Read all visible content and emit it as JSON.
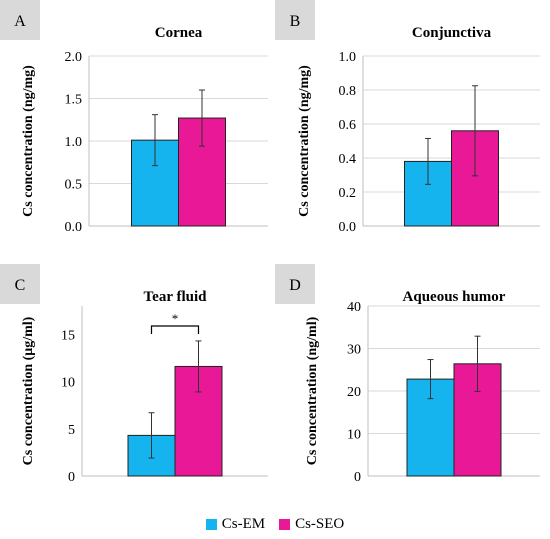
{
  "colors": {
    "cs_em": "#16b4ee",
    "cs_seo": "#e81896",
    "panel_letter_bg": "#d9d9d9",
    "grid": "#d9d9d9"
  },
  "legend": {
    "cs_em": "Cs-EM",
    "cs_seo": "Cs-SEO"
  },
  "chart_data": [
    {
      "type": "bar",
      "panel": "A",
      "title": "Cornea",
      "ylabel": "Cs concentration (ng/mg)",
      "ylim": [
        0,
        2.0
      ],
      "yticks": [
        "0.0",
        "0.5",
        "1.0",
        "1.5",
        "2.0"
      ],
      "grid": true,
      "series": [
        {
          "name": "Cs-EM",
          "value": 1.01,
          "error": 0.3
        },
        {
          "name": "Cs-SEO",
          "value": 1.27,
          "error": 0.33
        }
      ],
      "annotation": ""
    },
    {
      "type": "bar",
      "panel": "B",
      "title": "Conjunctiva",
      "ylabel": "Cs concentration (ng/mg)",
      "ylim": [
        0,
        1.0
      ],
      "yticks": [
        "0.0",
        "0.2",
        "0.4",
        "0.6",
        "0.8",
        "1.0"
      ],
      "grid": true,
      "series": [
        {
          "name": "Cs-EM",
          "value": 0.38,
          "error": 0.135
        },
        {
          "name": "Cs-SEO",
          "value": 0.56,
          "error": 0.265
        }
      ],
      "annotation": ""
    },
    {
      "type": "bar",
      "panel": "C",
      "title": "Tear fluid",
      "ylabel": "Cs concentration (μg/ml)",
      "ylim": [
        0,
        18
      ],
      "yticks": [
        "0",
        "5",
        "10",
        "15"
      ],
      "grid": false,
      "series": [
        {
          "name": "Cs-EM",
          "value": 4.3,
          "error": 2.4
        },
        {
          "name": "Cs-SEO",
          "value": 11.6,
          "error": 2.7
        }
      ],
      "annotation": "*"
    },
    {
      "type": "bar",
      "panel": "D",
      "title": "Aqueous humor",
      "ylabel": "Cs concentration (ng/ml)",
      "ylim": [
        0,
        40
      ],
      "yticks": [
        "0",
        "10",
        "20",
        "30",
        "40"
      ],
      "grid": true,
      "series": [
        {
          "name": "Cs-EM",
          "value": 22.8,
          "error": 4.6
        },
        {
          "name": "Cs-SEO",
          "value": 26.4,
          "error": 6.5
        }
      ],
      "annotation": ""
    }
  ]
}
